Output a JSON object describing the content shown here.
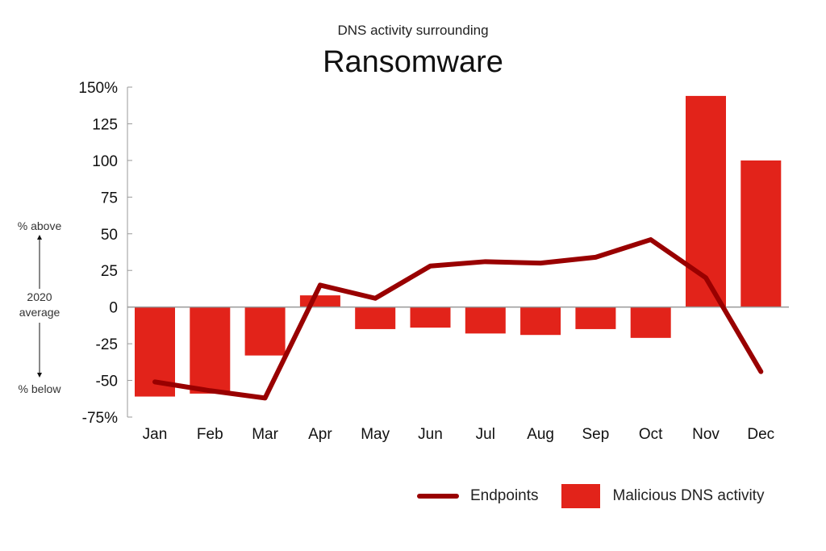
{
  "header": {
    "subtitle": "DNS activity surrounding",
    "title": "Ransomware"
  },
  "side_annotation": {
    "above": "% above",
    "center_line1": "2020",
    "center_line2": "average",
    "below": "% below"
  },
  "legend": {
    "endpoints": "Endpoints",
    "dns": "Malicious DNS activity"
  },
  "colors": {
    "bar": "#e2231a",
    "line": "#990000",
    "axis": "#999999"
  },
  "chart_data": {
    "type": "bar",
    "title": "Ransomware",
    "subtitle": "DNS activity surrounding",
    "xlabel": "",
    "ylabel": "% above / below 2020 average",
    "ylim": [
      -75,
      150
    ],
    "yticks": [
      "150%",
      "125",
      "100",
      "75",
      "50",
      "25",
      "0",
      "-25",
      "-50",
      "-75%"
    ],
    "grid": false,
    "legend_position": "bottom-right",
    "categories": [
      "Jan",
      "Feb",
      "Mar",
      "Apr",
      "May",
      "Jun",
      "Jul",
      "Aug",
      "Sep",
      "Oct",
      "Nov",
      "Dec"
    ],
    "series": [
      {
        "name": "Malicious DNS activity",
        "type": "bar",
        "values": [
          -61,
          -59,
          -33,
          8,
          -15,
          -14,
          -18,
          -19,
          -15,
          -21,
          144,
          100
        ]
      },
      {
        "name": "Endpoints",
        "type": "line",
        "values": [
          -51,
          -57,
          -62,
          15,
          6,
          28,
          31,
          30,
          34,
          46,
          20,
          -44
        ]
      }
    ]
  }
}
